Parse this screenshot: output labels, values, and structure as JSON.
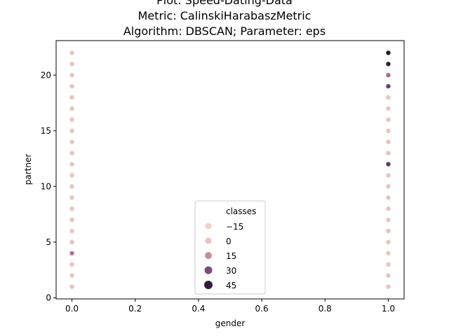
{
  "title": {
    "line1": "Plot: Speed-Dating-Data",
    "line2": "Metric: CalinskiHarabaszMetric",
    "line3": "Algorithm: DBSCAN; Parameter: eps"
  },
  "chart_data": {
    "type": "scatter",
    "title": "Plot: Speed-Dating-Data / Metric: CalinskiHarabaszMetric / Algorithm: DBSCAN; Parameter: eps",
    "xlabel": "gender",
    "ylabel": "partner",
    "xlim": [
      -0.05,
      1.05
    ],
    "ylim": [
      -0.1,
      23.1
    ],
    "xticks": [
      "0.0",
      "0.2",
      "0.4",
      "0.6",
      "0.8",
      "1.0"
    ],
    "xtick_values": [
      0.0,
      0.2,
      0.4,
      0.6,
      0.8,
      1.0
    ],
    "yticks": [
      "0",
      "5",
      "10",
      "15",
      "20"
    ],
    "ytick_values": [
      0,
      5,
      10,
      15,
      20
    ],
    "grid": false,
    "legend": {
      "title": "classes",
      "placement": "lower center",
      "entries": [
        {
          "label": "−15",
          "color": "#efd2cc"
        },
        {
          "label": "0",
          "color": "#e8c3bf"
        },
        {
          "label": "15",
          "color": "#c98d9d"
        },
        {
          "label": "30",
          "color": "#7c4b7d"
        },
        {
          "label": "45",
          "color": "#2d1e3e"
        }
      ]
    },
    "points": [
      {
        "x": 0,
        "y": 1,
        "class": 0
      },
      {
        "x": 0,
        "y": 2,
        "class": 0
      },
      {
        "x": 0,
        "y": 3,
        "class": 0
      },
      {
        "x": 0,
        "y": 4,
        "class": 20
      },
      {
        "x": 0,
        "y": 5,
        "class": 0
      },
      {
        "x": 0,
        "y": 6,
        "class": 0
      },
      {
        "x": 0,
        "y": 7,
        "class": 0
      },
      {
        "x": 0,
        "y": 8,
        "class": 0
      },
      {
        "x": 0,
        "y": 9,
        "class": 0
      },
      {
        "x": 0,
        "y": 10,
        "class": 0
      },
      {
        "x": 0,
        "y": 11,
        "class": 0
      },
      {
        "x": 0,
        "y": 12,
        "class": 0
      },
      {
        "x": 0,
        "y": 13,
        "class": 0
      },
      {
        "x": 0,
        "y": 14,
        "class": 0
      },
      {
        "x": 0,
        "y": 15,
        "class": 0
      },
      {
        "x": 0,
        "y": 16,
        "class": 0
      },
      {
        "x": 0,
        "y": 17,
        "class": 0
      },
      {
        "x": 0,
        "y": 18,
        "class": 0
      },
      {
        "x": 0,
        "y": 19,
        "class": 0
      },
      {
        "x": 0,
        "y": 20,
        "class": 0
      },
      {
        "x": 0,
        "y": 21,
        "class": 0
      },
      {
        "x": 0,
        "y": 22,
        "class": 0
      },
      {
        "x": 1,
        "y": 1,
        "class": 0
      },
      {
        "x": 1,
        "y": 2,
        "class": 0
      },
      {
        "x": 1,
        "y": 3,
        "class": 0
      },
      {
        "x": 1,
        "y": 4,
        "class": 0
      },
      {
        "x": 1,
        "y": 5,
        "class": 0
      },
      {
        "x": 1,
        "y": 6,
        "class": 0
      },
      {
        "x": 1,
        "y": 7,
        "class": 0
      },
      {
        "x": 1,
        "y": 8,
        "class": 0
      },
      {
        "x": 1,
        "y": 9,
        "class": 0
      },
      {
        "x": 1,
        "y": 10,
        "class": 0
      },
      {
        "x": 1,
        "y": 11,
        "class": 0
      },
      {
        "x": 1,
        "y": 12,
        "class": 35
      },
      {
        "x": 1,
        "y": 13,
        "class": 0
      },
      {
        "x": 1,
        "y": 14,
        "class": 0
      },
      {
        "x": 1,
        "y": 15,
        "class": 0
      },
      {
        "x": 1,
        "y": 16,
        "class": 0
      },
      {
        "x": 1,
        "y": 17,
        "class": 0
      },
      {
        "x": 1,
        "y": 18,
        "class": 0
      },
      {
        "x": 1,
        "y": 19,
        "class": 33
      },
      {
        "x": 1,
        "y": 20,
        "class": 22
      },
      {
        "x": 1,
        "y": 21,
        "class": 45
      },
      {
        "x": 1,
        "y": 22,
        "class": 48
      }
    ]
  }
}
